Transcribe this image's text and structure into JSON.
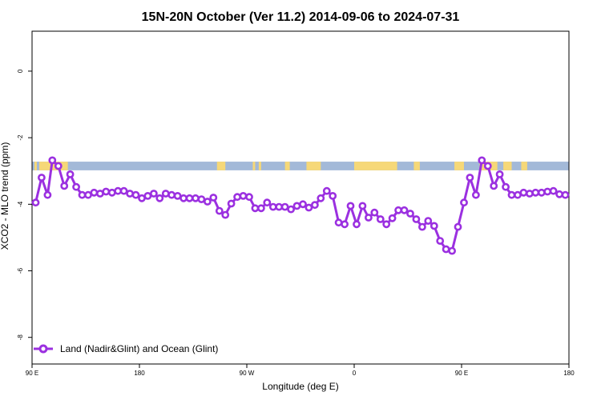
{
  "chart_data": {
    "type": "line",
    "title": "15N-20N October (Ver 11.2)   2014-09-06 to 2024-07-31",
    "xlabel": "Longitude (deg E)",
    "ylabel": "XCO2 - MLO trend (ppm)",
    "x_ticks": [
      {
        "value": -90,
        "label": "90 E"
      },
      {
        "value": 0,
        "label": "180"
      },
      {
        "value": 90,
        "label": "90 W"
      },
      {
        "value": 180,
        "label": "0"
      },
      {
        "value": 270,
        "label": "90 E"
      },
      {
        "value": 360,
        "label": "180"
      }
    ],
    "y_ticks": [
      0,
      -2,
      -4,
      -6,
      -8
    ],
    "xlim": [
      -90,
      360
    ],
    "ylim": [
      -8.8,
      1.2
    ],
    "grid": false,
    "legend_position": "bottom-left",
    "colors": {
      "series": "#9b30e0",
      "ocean_band": "#a3b9d8",
      "land_band": "#f6d878"
    },
    "land_band": {
      "y_range": [
        -2.98,
        -2.72
      ],
      "land_segments": [
        [
          -88,
          -86
        ],
        [
          -84,
          -60
        ],
        [
          65,
          72
        ],
        [
          95,
          97
        ],
        [
          100,
          102
        ],
        [
          122,
          126
        ],
        [
          140,
          152
        ],
        [
          180,
          216
        ],
        [
          230,
          235
        ],
        [
          264,
          272
        ],
        [
          285,
          300
        ],
        [
          305,
          312
        ],
        [
          320,
          325
        ]
      ]
    },
    "series": [
      {
        "name": "Land (Nadir&Glint) and Ocean (Glint)",
        "x": [
          -87,
          -82,
          -77,
          -73,
          -68,
          -63,
          -58,
          -53,
          -48,
          -43,
          -38,
          -33,
          -28,
          -23,
          -18,
          -13,
          -8,
          -3,
          2,
          7,
          12,
          17,
          22,
          27,
          32,
          37,
          42,
          47,
          52,
          57,
          62,
          67,
          72,
          77,
          82,
          87,
          92,
          97,
          102,
          107,
          112,
          117,
          122,
          127,
          132,
          137,
          142,
          147,
          152,
          157,
          162,
          167,
          172,
          177,
          182,
          187,
          192,
          197,
          202,
          207,
          212,
          217,
          222,
          227,
          232,
          237,
          242,
          247,
          252,
          257,
          262,
          267,
          272,
          277,
          282,
          287,
          292,
          297,
          302,
          307,
          312,
          317,
          322,
          327,
          332,
          337,
          342,
          347,
          352,
          357
        ],
        "values": [
          -3.95,
          -3.2,
          -3.72,
          -2.68,
          -2.85,
          -3.45,
          -3.1,
          -3.48,
          -3.72,
          -3.72,
          -3.65,
          -3.68,
          -3.62,
          -3.65,
          -3.6,
          -3.6,
          -3.68,
          -3.72,
          -3.82,
          -3.75,
          -3.68,
          -3.82,
          -3.68,
          -3.72,
          -3.75,
          -3.82,
          -3.82,
          -3.82,
          -3.85,
          -3.92,
          -3.8,
          -4.2,
          -4.32,
          -3.98,
          -3.78,
          -3.75,
          -3.78,
          -4.12,
          -4.12,
          -3.95,
          -4.08,
          -4.08,
          -4.08,
          -4.15,
          -4.05,
          -4.0,
          -4.1,
          -4.02,
          -3.82,
          -3.6,
          -3.75,
          -4.55,
          -4.6,
          -4.05,
          -4.6,
          -4.05,
          -4.4,
          -4.25,
          -4.45,
          -4.6,
          -4.42,
          -4.18,
          -4.18,
          -4.28,
          -4.45,
          -4.68,
          -4.5,
          -4.65,
          -5.1,
          -5.35,
          -5.4,
          -4.68,
          -3.95,
          -3.2,
          -3.72,
          -2.68,
          -2.85,
          -3.45,
          -3.1,
          -3.48,
          -3.72,
          -3.72,
          -3.65,
          -3.68,
          -3.65,
          -3.65,
          -3.62,
          -3.6,
          -3.7,
          -3.72
        ]
      }
    ]
  }
}
